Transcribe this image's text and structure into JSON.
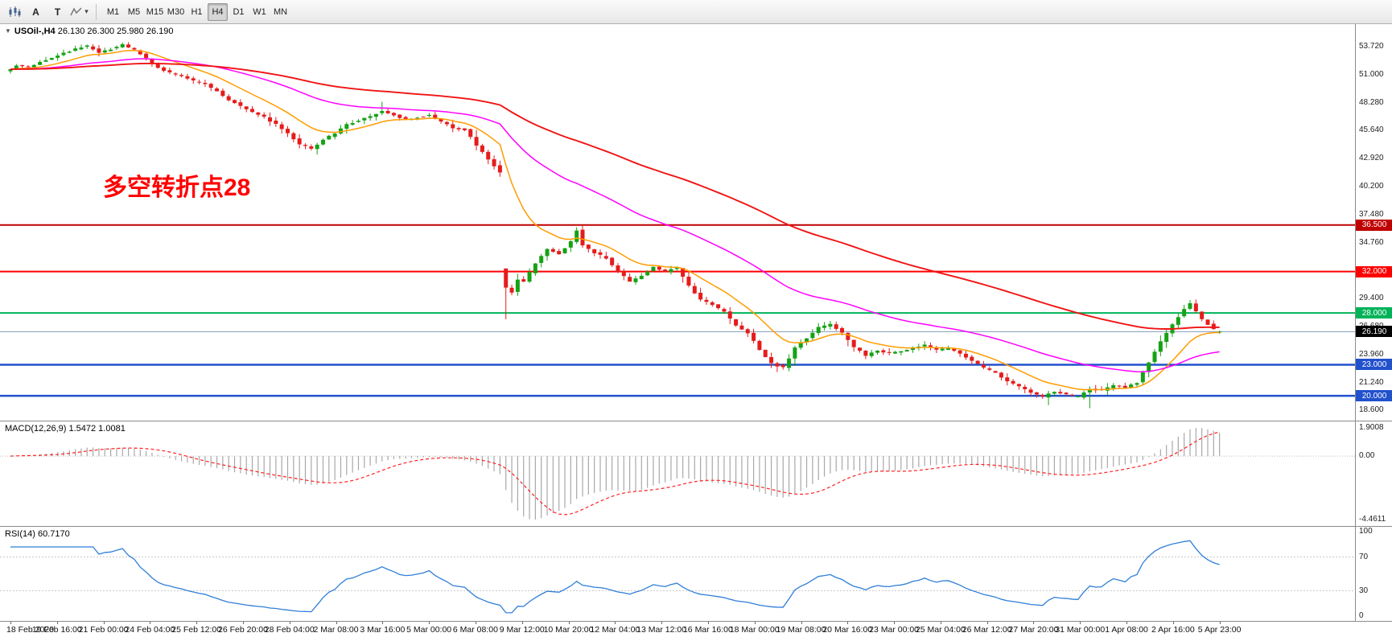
{
  "toolbar": {
    "text_tools": [
      "A",
      "T"
    ],
    "timeframes": [
      "M1",
      "M5",
      "M15",
      "M30",
      "H1",
      "H4",
      "D1",
      "W1",
      "MN"
    ],
    "active_timeframe": "H4"
  },
  "chart": {
    "title_arrow": "▼",
    "symbol_period": "USOil-,H4",
    "ohlc": "26.130 26.300 25.980 26.190",
    "annotation": "多空转折点28",
    "price_axis_labels": [
      "53.720",
      "51.000",
      "48.280",
      "45.640",
      "42.920",
      "40.200",
      "37.480",
      "34.760",
      "29.400",
      "26.680",
      "23.960",
      "21.240",
      "18.600"
    ]
  },
  "chart_data": {
    "type": "candlestick",
    "symbol": "USOil-",
    "timeframe": "H4",
    "open": 26.13,
    "high": 26.3,
    "low": 25.98,
    "close": 26.19,
    "count": 206,
    "ylim": [
      17.6,
      55.9
    ],
    "up_color": "#15a215",
    "down_color": "#e51c1c",
    "price_path": [
      [
        0,
        51.3
      ],
      [
        2,
        51.9
      ],
      [
        4,
        51.7
      ],
      [
        6,
        52.2
      ],
      [
        8,
        52.6
      ],
      [
        10,
        53.1
      ],
      [
        12,
        53.5
      ],
      [
        14,
        53.8
      ],
      [
        16,
        53.2
      ],
      [
        18,
        53.5
      ],
      [
        20,
        53.9
      ],
      [
        22,
        53.4
      ],
      [
        24,
        52.6
      ],
      [
        26,
        51.7
      ],
      [
        28,
        51.2
      ],
      [
        30,
        50.9
      ],
      [
        32,
        50.4
      ],
      [
        34,
        50.1
      ],
      [
        36,
        49.4
      ],
      [
        38,
        48.6
      ],
      [
        40,
        48.0
      ],
      [
        42,
        47.4
      ],
      [
        44,
        46.9
      ],
      [
        46,
        46.2
      ],
      [
        48,
        45.4
      ],
      [
        50,
        44.3
      ],
      [
        52,
        43.9
      ],
      [
        54,
        44.7
      ],
      [
        56,
        45.4
      ],
      [
        58,
        46.2
      ],
      [
        60,
        46.6
      ],
      [
        62,
        47.0
      ],
      [
        64,
        47.5
      ],
      [
        66,
        47.1
      ],
      [
        68,
        46.7
      ],
      [
        70,
        46.9
      ],
      [
        72,
        47.1
      ],
      [
        74,
        46.5
      ],
      [
        76,
        45.9
      ],
      [
        78,
        45.7
      ],
      [
        80,
        44.2
      ],
      [
        82,
        42.8
      ],
      [
        83,
        42.2
      ],
      [
        84,
        41.6
      ],
      [
        85,
        30.5
      ],
      [
        86,
        30.0
      ],
      [
        87,
        31.2
      ],
      [
        88,
        31.0
      ],
      [
        90,
        32.8
      ],
      [
        92,
        34.2
      ],
      [
        94,
        33.7
      ],
      [
        96,
        34.9
      ],
      [
        97,
        36.0
      ],
      [
        98,
        34.6
      ],
      [
        100,
        33.8
      ],
      [
        102,
        33.3
      ],
      [
        104,
        32.0
      ],
      [
        106,
        31.0
      ],
      [
        108,
        31.6
      ],
      [
        110,
        32.5
      ],
      [
        112,
        32.0
      ],
      [
        114,
        32.4
      ],
      [
        116,
        30.6
      ],
      [
        118,
        29.3
      ],
      [
        120,
        28.8
      ],
      [
        122,
        28.1
      ],
      [
        124,
        26.8
      ],
      [
        126,
        26.1
      ],
      [
        128,
        24.4
      ],
      [
        130,
        23.1
      ],
      [
        132,
        22.7
      ],
      [
        134,
        24.6
      ],
      [
        136,
        25.6
      ],
      [
        138,
        26.6
      ],
      [
        140,
        26.9
      ],
      [
        142,
        26.1
      ],
      [
        144,
        24.7
      ],
      [
        146,
        23.9
      ],
      [
        148,
        24.4
      ],
      [
        150,
        24.1
      ],
      [
        152,
        24.3
      ],
      [
        154,
        24.7
      ],
      [
        156,
        24.9
      ],
      [
        158,
        24.4
      ],
      [
        160,
        24.6
      ],
      [
        162,
        24.1
      ],
      [
        164,
        23.4
      ],
      [
        166,
        22.7
      ],
      [
        168,
        22.2
      ],
      [
        170,
        21.4
      ],
      [
        172,
        20.9
      ],
      [
        174,
        20.3
      ],
      [
        176,
        19.9
      ],
      [
        178,
        20.4
      ],
      [
        180,
        20.1
      ],
      [
        182,
        19.9
      ],
      [
        184,
        20.7
      ],
      [
        186,
        20.5
      ],
      [
        188,
        21.0
      ],
      [
        190,
        20.8
      ],
      [
        192,
        21.3
      ],
      [
        194,
        23.2
      ],
      [
        196,
        25.2
      ],
      [
        198,
        26.9
      ],
      [
        200,
        28.4
      ],
      [
        201,
        28.9
      ],
      [
        202,
        28.1
      ],
      [
        203,
        27.4
      ],
      [
        205,
        26.4
      ],
      [
        206,
        26.19
      ]
    ],
    "gaps": [
      {
        "i": 84,
        "open": 32.3
      }
    ],
    "spikes": [
      {
        "i": 52,
        "low": 43.3
      },
      {
        "i": 63,
        "high": 48.4
      },
      {
        "i": 84,
        "low": 27.4
      },
      {
        "i": 97,
        "high": 36.4
      },
      {
        "i": 130,
        "low": 22.3
      },
      {
        "i": 176,
        "low": 19.1
      },
      {
        "i": 183,
        "low": 18.8
      },
      {
        "i": 201,
        "high": 29.3
      }
    ],
    "moving_averages": [
      {
        "name": "fast-ma",
        "period": 13,
        "color": "#ff9c00"
      },
      {
        "name": "medium-ma",
        "period": 45,
        "color": "#ff00ff"
      },
      {
        "name": "slow-ma",
        "period": 100,
        "color": "#f01414"
      }
    ],
    "levels": [
      {
        "price": 36.5,
        "label": "36.500",
        "color": "#c00000",
        "width": 2
      },
      {
        "price": 32.0,
        "label": "32.000",
        "color": "#ff0000",
        "width": 2
      },
      {
        "price": 28.0,
        "label": "28.000",
        "color": "#00b359",
        "width": 2
      },
      {
        "price": 23.0,
        "label": "23.000",
        "color": "#2251cc",
        "width": 2.5
      },
      {
        "price": 20.0,
        "label": "20.000",
        "color": "#2251cc",
        "width": 2.5
      }
    ],
    "bid": {
      "price": 26.19,
      "label": "26.190",
      "line_color": "#7f9db9",
      "box_color": "#000000"
    }
  },
  "macd_panel": {
    "label": "MACD(12,26,9) 1.5472 1.0081",
    "params": {
      "fast": 12,
      "slow": 26,
      "signal": 9
    },
    "values": [
      1.5472,
      1.0081
    ],
    "scale_labels": {
      "max": "1.9008",
      "zero": "0.00",
      "min": "-4.4611"
    },
    "bar_color": "#a8a8a8",
    "signal_color": "#ff2020"
  },
  "rsi_panel": {
    "label": "RSI(14) 60.7170",
    "period": 14,
    "value": 60.717,
    "scale_labels": [
      "100",
      "70",
      "30",
      "0"
    ],
    "levels": [
      70,
      30
    ],
    "line_color": "#2f7ed8"
  },
  "time_axis": {
    "labels": [
      "18 Feb 2020",
      "19 Feb 16:00",
      "21 Feb 00:00",
      "24 Feb 04:00",
      "25 Feb 12:00",
      "26 Feb 20:00",
      "28 Feb 04:00",
      "2 Mar 08:00",
      "3 Mar 16:00",
      "5 Mar 00:00",
      "6 Mar 08:00",
      "9 Mar 12:00",
      "10 Mar 20:00",
      "12 Mar 04:00",
      "13 Mar 12:00",
      "16 Mar 16:00",
      "18 Mar 00:00",
      "19 Mar 08:00",
      "20 Mar 16:00",
      "23 Mar 00:00",
      "25 Mar 04:00",
      "26 Mar 12:00",
      "27 Mar 20:00",
      "31 Mar 00:00",
      "1 Apr 08:00",
      "2 Apr 16:00",
      "5 Apr 23:00"
    ]
  }
}
